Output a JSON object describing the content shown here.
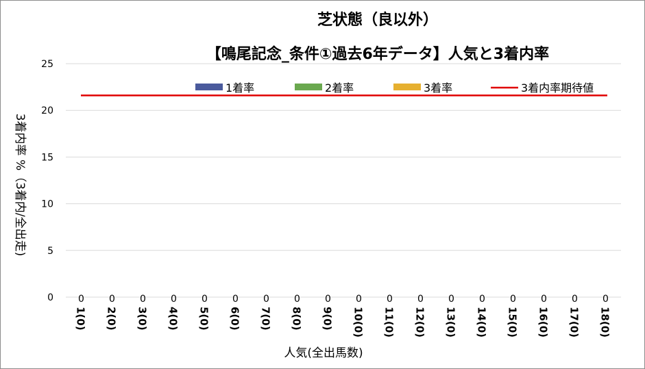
{
  "chart_data": {
    "type": "bar",
    "title": "芝状態（良以外）",
    "subtitle": "【鳴尾記念_条件①過去6年データ】人気と3着内率",
    "xlabel": "人気(全出馬数)",
    "ylabel": "3着内率 %（3着内/全出走)",
    "ylim": [
      0,
      25
    ],
    "yticks": [
      "0",
      "5",
      "10",
      "15",
      "20",
      "25"
    ],
    "categories": [
      "1(0)",
      "2(0)",
      "3(0)",
      "4(0)",
      "5(0)",
      "6(0)",
      "7(0)",
      "8(0)",
      "9(0)",
      "10(0)",
      "11(0)",
      "12(0)",
      "13(0)",
      "14(0)",
      "15(0)",
      "16(0)",
      "17(0)",
      "18(0)"
    ],
    "series": [
      {
        "name": "1着率",
        "type": "bar",
        "color": "#4a5a9c",
        "values": [
          0,
          0,
          0,
          0,
          0,
          0,
          0,
          0,
          0,
          0,
          0,
          0,
          0,
          0,
          0,
          0,
          0,
          0
        ]
      },
      {
        "name": "2着率",
        "type": "bar",
        "color": "#6aa84f",
        "values": [
          0,
          0,
          0,
          0,
          0,
          0,
          0,
          0,
          0,
          0,
          0,
          0,
          0,
          0,
          0,
          0,
          0,
          0
        ]
      },
      {
        "name": "3着率",
        "type": "bar",
        "color": "#e6b030",
        "values": [
          0,
          0,
          0,
          0,
          0,
          0,
          0,
          0,
          0,
          0,
          0,
          0,
          0,
          0,
          0,
          0,
          0,
          0
        ]
      },
      {
        "name": "3着内率期待値",
        "type": "line",
        "color": "#e00000",
        "values": [
          21.6,
          21.6,
          21.6,
          21.6,
          21.6,
          21.6,
          21.6,
          21.6,
          21.6,
          21.6,
          21.6,
          21.6,
          21.6,
          21.6,
          21.6,
          21.6,
          21.6,
          21.6
        ]
      }
    ],
    "data_labels": [
      "0",
      "0",
      "0",
      "0",
      "0",
      "0",
      "0",
      "0",
      "0",
      "0",
      "0",
      "0",
      "0",
      "0",
      "0",
      "0",
      "0",
      "0"
    ],
    "grid": true,
    "gridline_color": "#d9d9d9",
    "legend_position": "top-right"
  }
}
